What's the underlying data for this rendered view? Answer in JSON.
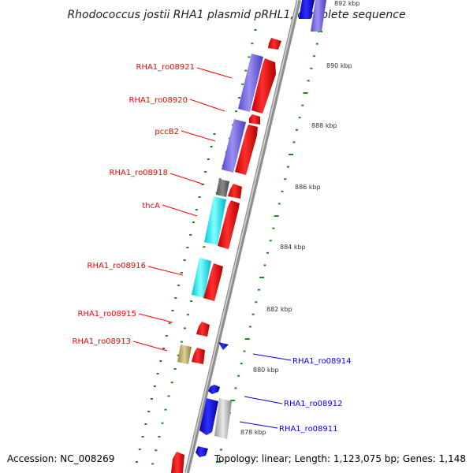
{
  "title": "Rhodococcus jostii RHA1 plasmid pRHL1, complete sequence",
  "footer": {
    "accession": "Accession: NC_008269",
    "topology": "Topology: linear; Length: 1,123,075 bp; Genes: 1,148"
  },
  "colors": {
    "forward_gene": "#ff0000",
    "reverse_gene": "#0000ff",
    "purple_feature": "#7a6ee0",
    "cyan_feature": "#00ffff",
    "gray_feature": "#7a7a7a",
    "silver_feature": "#c8c8c8",
    "olive_feature": "#c8b870",
    "tick_green": "#1a8a1a"
  },
  "scale_labels": [
    "892 kbp",
    "890 kbp",
    "888 kbp",
    "886 kbp",
    "884 kbp",
    "882 kbp",
    "880 kbp",
    "878 kbp"
  ],
  "left_labels": [
    "RHA1_ro08921",
    "RHA1_ro08920",
    "pccB2",
    "RHA1_ro08918",
    "thcA",
    "RHA1_ro08916",
    "RHA1_ro08915",
    "RHA1_ro08913"
  ],
  "right_labels": [
    "RHA1_ro08914",
    "RHA1_ro08912",
    "RHA1_ro08911"
  ]
}
